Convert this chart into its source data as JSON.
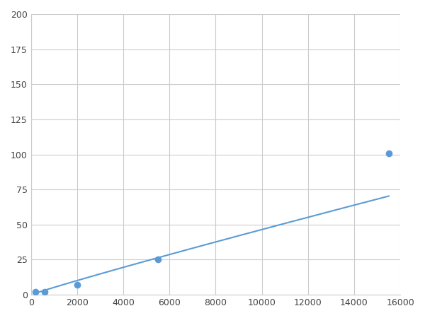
{
  "x": [
    200,
    600,
    2000,
    5500,
    15500
  ],
  "y": [
    2,
    2,
    7,
    25,
    101
  ],
  "line_color": "#5b9bd5",
  "marker_color": "#5b9bd5",
  "marker_size": 7,
  "line_width": 1.5,
  "xlim": [
    0,
    16000
  ],
  "ylim": [
    0,
    200
  ],
  "xticks": [
    0,
    2000,
    4000,
    6000,
    8000,
    10000,
    12000,
    14000,
    16000
  ],
  "yticks": [
    0,
    25,
    50,
    75,
    100,
    125,
    150,
    175,
    200
  ],
  "grid_color": "#cccccc",
  "background_color": "#ffffff",
  "fig_width": 6.0,
  "fig_height": 4.5,
  "dpi": 100
}
